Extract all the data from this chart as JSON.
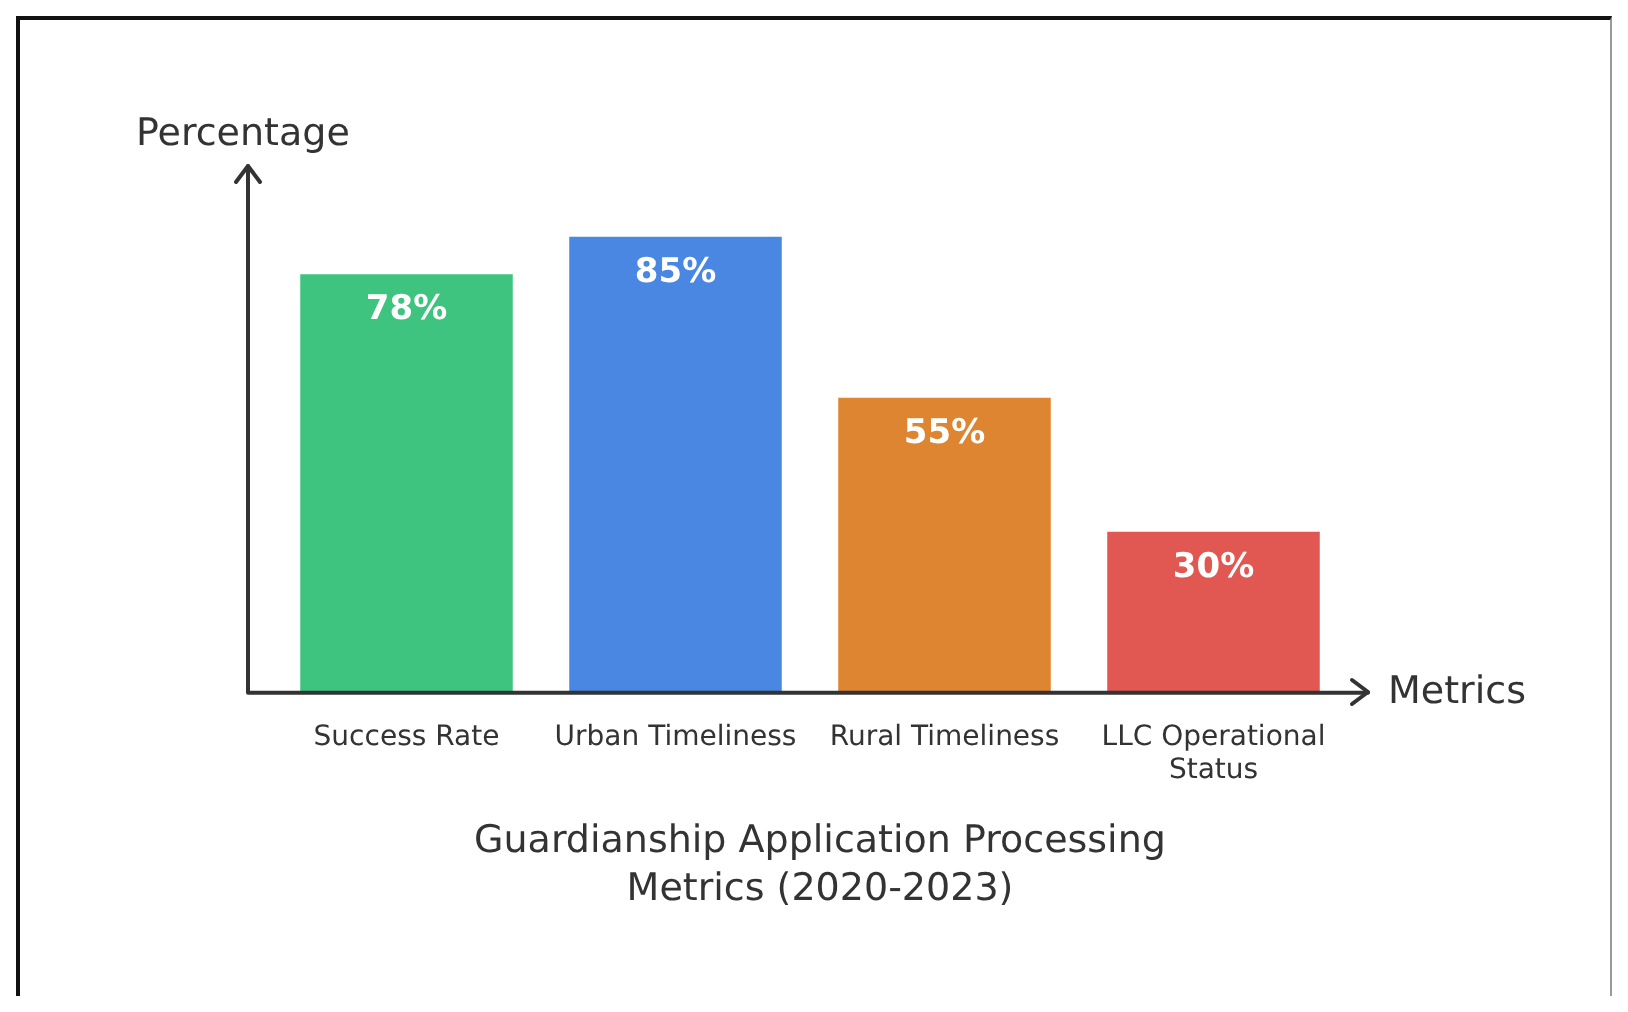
{
  "chart_data": {
    "type": "bar",
    "title": "Guardianship Application Processing Metrics (2020-2023)",
    "xlabel": "Metrics",
    "ylabel": "Percentage",
    "categories": [
      "Success Rate",
      "Urban Timeliness",
      "Rural Timeliness",
      "LLC Operational Status"
    ],
    "values": [
      78,
      85,
      55,
      30
    ],
    "colors": [
      "#3ec47f",
      "#4a87e2",
      "#de8531",
      "#e05851"
    ],
    "value_labels": [
      "78%",
      "85%",
      "55%",
      "30%"
    ],
    "tick_labels": "x",
    "grid": false,
    "legend": false
  }
}
